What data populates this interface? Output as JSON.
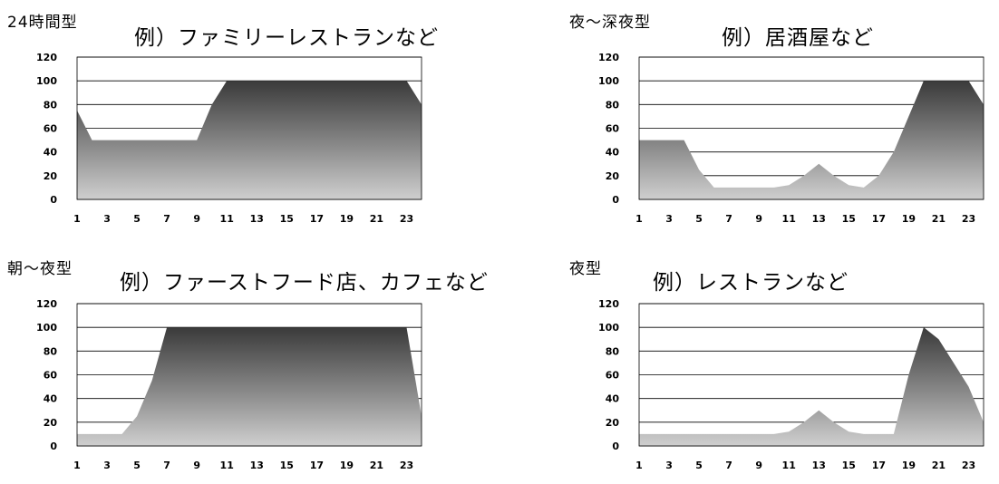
{
  "chart_data": [
    {
      "type": "area",
      "title": "24時間型",
      "subtitle": "例）ファミリーレストランなど",
      "x": [
        1,
        2,
        3,
        4,
        5,
        6,
        7,
        8,
        9,
        10,
        11,
        12,
        13,
        14,
        15,
        16,
        17,
        18,
        19,
        20,
        21,
        22,
        23,
        24
      ],
      "xticks": [
        "1",
        "3",
        "5",
        "7",
        "9",
        "11",
        "13",
        "15",
        "17",
        "19",
        "21",
        "23"
      ],
      "yticks": [
        "0",
        "20",
        "40",
        "60",
        "80",
        "100",
        "120"
      ],
      "ylim": [
        0,
        120
      ],
      "grid": true,
      "values": [
        75,
        50,
        50,
        50,
        50,
        50,
        50,
        50,
        50,
        80,
        100,
        100,
        100,
        100,
        100,
        100,
        100,
        100,
        100,
        100,
        100,
        100,
        100,
        80
      ]
    },
    {
      "type": "area",
      "title": "夜～深夜型",
      "subtitle": "例）居酒屋など",
      "x": [
        1,
        2,
        3,
        4,
        5,
        6,
        7,
        8,
        9,
        10,
        11,
        12,
        13,
        14,
        15,
        16,
        17,
        18,
        19,
        20,
        21,
        22,
        23,
        24
      ],
      "xticks": [
        "1",
        "3",
        "5",
        "7",
        "9",
        "11",
        "13",
        "15",
        "17",
        "19",
        "21",
        "23"
      ],
      "yticks": [
        "0",
        "20",
        "40",
        "60",
        "80",
        "100",
        "120"
      ],
      "ylim": [
        0,
        120
      ],
      "grid": true,
      "values": [
        50,
        50,
        50,
        50,
        25,
        10,
        10,
        10,
        10,
        10,
        12,
        20,
        30,
        20,
        12,
        10,
        20,
        40,
        70,
        100,
        100,
        100,
        100,
        80
      ]
    },
    {
      "type": "area",
      "title": "朝～夜型",
      "subtitle": "例）ファーストフード店、カフェなど",
      "x": [
        1,
        2,
        3,
        4,
        5,
        6,
        7,
        8,
        9,
        10,
        11,
        12,
        13,
        14,
        15,
        16,
        17,
        18,
        19,
        20,
        21,
        22,
        23,
        24
      ],
      "xticks": [
        "1",
        "3",
        "5",
        "7",
        "9",
        "11",
        "13",
        "15",
        "17",
        "19",
        "21",
        "23"
      ],
      "yticks": [
        "0",
        "20",
        "40",
        "60",
        "80",
        "100",
        "120"
      ],
      "ylim": [
        0,
        120
      ],
      "grid": true,
      "values": [
        10,
        10,
        10,
        10,
        25,
        55,
        100,
        100,
        100,
        100,
        100,
        100,
        100,
        100,
        100,
        100,
        100,
        100,
        100,
        100,
        100,
        100,
        100,
        25
      ]
    },
    {
      "type": "area",
      "title": "夜型",
      "subtitle": "例）レストランなど",
      "x": [
        1,
        2,
        3,
        4,
        5,
        6,
        7,
        8,
        9,
        10,
        11,
        12,
        13,
        14,
        15,
        16,
        17,
        18,
        19,
        20,
        21,
        22,
        23,
        24
      ],
      "xticks": [
        "1",
        "3",
        "5",
        "7",
        "9",
        "11",
        "13",
        "15",
        "17",
        "19",
        "21",
        "23"
      ],
      "yticks": [
        "0",
        "20",
        "40",
        "60",
        "80",
        "100",
        "120"
      ],
      "ylim": [
        0,
        120
      ],
      "grid": true,
      "values": [
        10,
        10,
        10,
        10,
        10,
        10,
        10,
        10,
        10,
        10,
        12,
        20,
        30,
        20,
        12,
        10,
        10,
        10,
        60,
        100,
        90,
        70,
        50,
        20
      ]
    }
  ]
}
